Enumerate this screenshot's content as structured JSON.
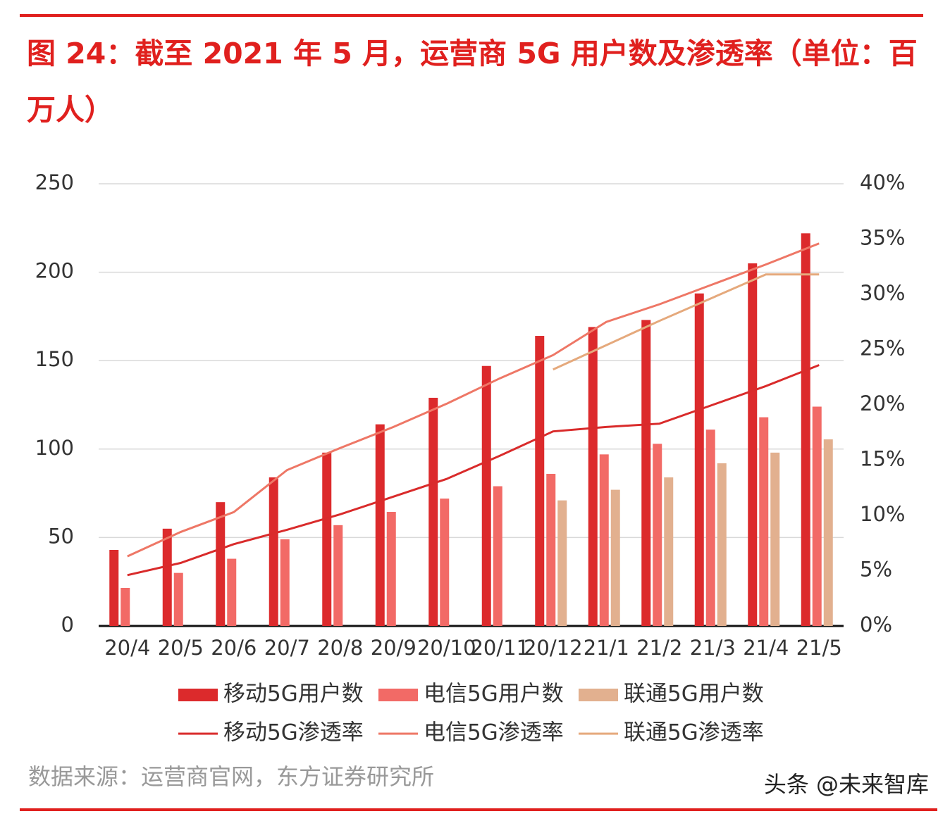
{
  "chart_data": {
    "type": "bar-line",
    "title": "图 24：截至 2021 年 5 月，运营商 5G 用户数及渗透率（单位：百万人）",
    "source": "数据来源：运营商官网，东方证券研究所",
    "categories": [
      "20/4",
      "20/5",
      "20/6",
      "20/7",
      "20/8",
      "20/9",
      "20/10",
      "20/11",
      "20/12",
      "21/1",
      "21/2",
      "21/3",
      "21/4",
      "21/5"
    ],
    "series": [
      {
        "name": "移动5G用户数",
        "type": "bar",
        "color": "#dc2a2c",
        "values": [
          43,
          55,
          70,
          84,
          98,
          114,
          129,
          147,
          164,
          169,
          173,
          188,
          205,
          222
        ]
      },
      {
        "name": "电信5G用户数",
        "type": "bar",
        "color": "#f26a66",
        "values": [
          21.5,
          30,
          38,
          49,
          57,
          64.5,
          72,
          79,
          86,
          97,
          103,
          111,
          118,
          124
        ]
      },
      {
        "name": "联通5G用户数",
        "type": "bar",
        "color": "#e2b08f",
        "values": [
          null,
          null,
          null,
          null,
          null,
          null,
          null,
          null,
          71,
          77,
          84,
          92,
          98,
          105.5
        ]
      },
      {
        "name": "移动5G渗透率",
        "type": "line",
        "axis": "y2",
        "color": "#d92b2b",
        "values": [
          4.6,
          5.7,
          7.4,
          8.7,
          10.1,
          11.7,
          13.3,
          15.4,
          17.6,
          18.0,
          18.3,
          20.0,
          21.7,
          23.6
        ]
      },
      {
        "name": "电信5G渗透率",
        "type": "line",
        "axis": "y2",
        "color": "#ee7766",
        "values": [
          6.3,
          8.5,
          10.3,
          14.1,
          16.1,
          18.0,
          20.1,
          22.4,
          24.5,
          27.5,
          29.1,
          30.9,
          32.7,
          34.6
        ]
      },
      {
        "name": "联通5G渗透率",
        "type": "line",
        "axis": "y2",
        "color": "#e5a97c",
        "values": [
          null,
          null,
          null,
          null,
          null,
          null,
          null,
          null,
          23.2,
          25.4,
          27.6,
          29.7,
          31.8,
          31.8
        ]
      }
    ],
    "ylim": [
      0,
      250
    ],
    "yticks": [
      0,
      50,
      100,
      150,
      200,
      250
    ],
    "y2lim": [
      0,
      40
    ],
    "y2ticks": [
      {
        "value": 0,
        "label": "0%"
      },
      {
        "value": 5,
        "label": "5%"
      },
      {
        "value": 10,
        "label": "10%"
      },
      {
        "value": 15,
        "label": "15%"
      },
      {
        "value": 20,
        "label": "20%"
      },
      {
        "value": 25,
        "label": "25%"
      },
      {
        "value": 30,
        "label": "30%"
      },
      {
        "value": 35,
        "label": "35%"
      },
      {
        "value": 40,
        "label": "40%"
      }
    ],
    "grid": true
  },
  "watermark": "头条 @未来智库"
}
